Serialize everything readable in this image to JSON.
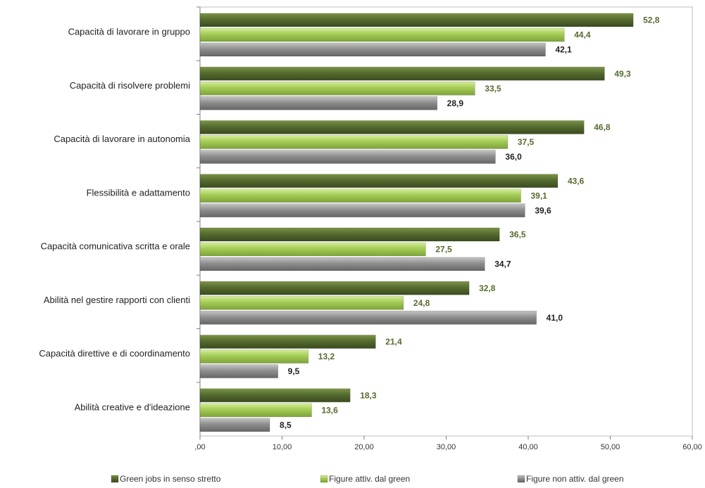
{
  "chart_data": {
    "type": "bar",
    "orientation": "horizontal",
    "categories": [
      "Capacità di lavorare in gruppo",
      "Capacità di risolvere problemi",
      "Capacità di lavorare in autonomia",
      "Flessibilità e adattamento",
      "Capacità comunicativa scritta e orale",
      "Abilità nel gestire rapporti con clienti",
      "Capacità direttive e di coordinamento",
      "Abilità creative e d'ideazione"
    ],
    "series": [
      {
        "name": "Green jobs in senso stretto",
        "color": "#556b2f",
        "label_color": "#556b2f",
        "values": [
          52.8,
          49.3,
          46.8,
          43.6,
          36.5,
          32.8,
          21.4,
          18.3
        ]
      },
      {
        "name": "Figure attiv. dal green",
        "color": "#a4cc55",
        "label_color": "#556b2f",
        "values": [
          44.4,
          33.5,
          37.5,
          39.1,
          27.5,
          24.8,
          13.2,
          13.6
        ]
      },
      {
        "name": "Figure non attiv. dal green",
        "color": "#8f8f8f",
        "label_color": "#222222",
        "values": [
          42.1,
          28.9,
          36.0,
          39.6,
          34.7,
          41.0,
          9.5,
          8.5
        ]
      }
    ],
    "value_labels": [
      [
        "52,8",
        "44,4",
        "42,1"
      ],
      [
        "49,3",
        "33,5",
        "28,9"
      ],
      [
        "46,8",
        "37,5",
        "36,0"
      ],
      [
        "43,6",
        "39,1",
        "39,6"
      ],
      [
        "36,5",
        "27,5",
        "34,7"
      ],
      [
        "32,8",
        "24,8",
        "41,0"
      ],
      [
        "21,4",
        "13,2",
        "9,5"
      ],
      [
        "18,3",
        "13,6",
        "8,5"
      ]
    ],
    "x_ticks": [
      0,
      10,
      20,
      30,
      40,
      50,
      60
    ],
    "x_tick_labels": [
      ",00",
      "10,00",
      "20,00",
      "30,00",
      "40,00",
      "50,00",
      "60,00"
    ],
    "xlim": [
      0,
      60
    ],
    "grid": false,
    "legend_position": "bottom"
  }
}
